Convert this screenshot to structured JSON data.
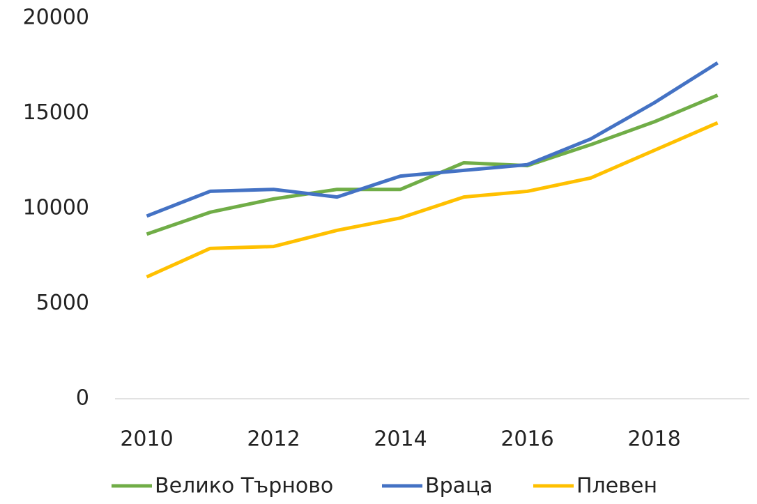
{
  "chart_data": {
    "type": "line",
    "x": [
      2010,
      2011,
      2012,
      2013,
      2014,
      2015,
      2016,
      2017,
      2018,
      2019
    ],
    "series": [
      {
        "name": "Велико Търново",
        "color": "#70ad47",
        "values": [
          8650,
          9800,
          10500,
          11000,
          11000,
          12400,
          12250,
          13350,
          14550,
          15950
        ]
      },
      {
        "name": "Враца",
        "color": "#4472c4",
        "values": [
          9600,
          10900,
          11000,
          10600,
          11700,
          12000,
          12300,
          13650,
          15550,
          17650
        ]
      },
      {
        "name": "Плевен",
        "color": "#ffc000",
        "values": [
          6400,
          7900,
          8000,
          8850,
          9500,
          10600,
          10900,
          11600,
          13050,
          14500
        ]
      }
    ],
    "xlim": [
      2009.5,
      2019.5
    ],
    "xticks": [
      2010,
      2012,
      2014,
      2016,
      2018
    ],
    "ylim": [
      0,
      20000
    ],
    "yticks": [
      0,
      5000,
      10000,
      15000,
      20000
    ],
    "grid": false,
    "legend": "bottom"
  }
}
